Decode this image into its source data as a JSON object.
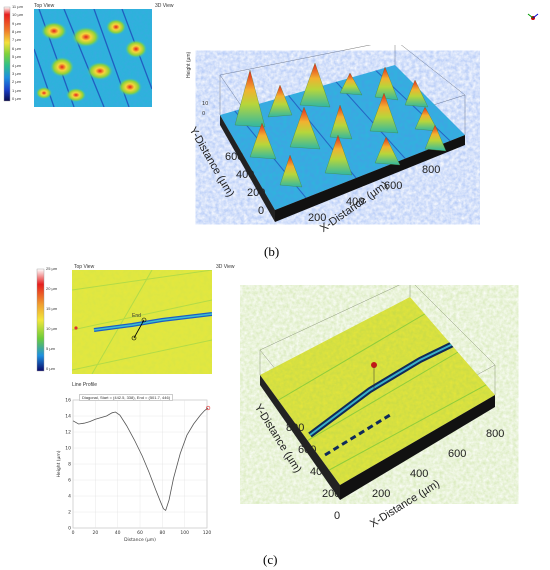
{
  "panel_b": {
    "scale": {
      "labels": [
        "11 µm",
        "10 µm",
        "9 µm",
        "8 µm",
        "7 µm",
        "6 µm",
        "5 µm",
        "4 µm",
        "3 µm",
        "2 µm",
        "1 µm",
        "0 µm"
      ]
    },
    "top_view_title": "Top View",
    "view3d_title": "3D View",
    "y_axis_title": "Y-Distance (µm)",
    "x_axis_title": "X-Distance (µm)",
    "y_ticks": [
      "0",
      "200",
      "400",
      "600"
    ],
    "x_ticks": [
      "200",
      "400",
      "600",
      "800"
    ],
    "height_axis": "Height (µm)",
    "caption": "(b)"
  },
  "panel_c": {
    "scale": {
      "labels": [
        "25 µm",
        "20 µm",
        "15 µm",
        "10 µm",
        "5 µm",
        "0 µm"
      ]
    },
    "top_view_title": "Top View",
    "view3d_title": "3D View",
    "end_label": "End",
    "profile_title": "Line Profile",
    "profile_legend": "Diagonal, Start = (442.5, 338), End = (501.7, 446)",
    "profile_ylabel": "Height (µm)",
    "profile_xlabel": "Distance (µm)",
    "y_axis_title": "Y-Distance (µm)",
    "x_axis_title": "X-Distance (µm)",
    "y_ticks": [
      "0",
      "200",
      "400",
      "600",
      "800"
    ],
    "x_ticks": [
      "200",
      "400",
      "600",
      "800"
    ],
    "caption": "(c)"
  },
  "chart_data": {
    "type": "line",
    "xlabel": "Distance (µm)",
    "ylabel": "Height (µm)",
    "xlim": [
      0,
      120
    ],
    "ylim": [
      0,
      16
    ],
    "x_ticks": [
      0,
      20,
      40,
      60,
      80,
      100,
      120
    ],
    "y_ticks": [
      0,
      2,
      4,
      6,
      8,
      10,
      12,
      14,
      16
    ],
    "series": [
      {
        "name": "Diagonal, Start = (442.5, 338), End = (501.7, 446)",
        "x": [
          0,
          5,
          10,
          15,
          20,
          25,
          30,
          35,
          38,
          42,
          48,
          55,
          62,
          68,
          74,
          78,
          81,
          83,
          86,
          90,
          96,
          102,
          108,
          114,
          118,
          121
        ],
        "y": [
          13.4,
          13.0,
          13.1,
          13.3,
          13.6,
          13.8,
          14.0,
          14.4,
          14.5,
          14.1,
          12.8,
          11.0,
          9.0,
          7.0,
          4.8,
          3.4,
          2.4,
          2.2,
          3.5,
          6.2,
          9.3,
          11.6,
          13.0,
          14.1,
          14.7,
          15.0
        ]
      }
    ]
  },
  "colors": {
    "accent_marker": "#e03030",
    "line": "#555555"
  }
}
